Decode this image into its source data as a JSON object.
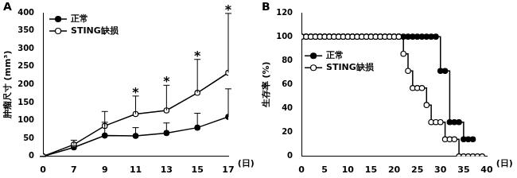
{
  "chart_data": [
    {
      "type": "line",
      "title": "A",
      "categories": [
        "0",
        "7",
        "9",
        "11",
        "13",
        "15",
        "17"
      ],
      "x_label": "(日)",
      "y_label": "肿瘤尺寸 (mm³)",
      "series": [
        {
          "name": "正常",
          "color": "#000000",
          "marker": "filled_circle",
          "values": [
            0,
            25,
            58,
            57,
            65,
            80,
            110
          ],
          "errors": [
            0,
            5,
            37,
            23,
            28,
            40,
            78
          ]
        },
        {
          "name": "STING缺损",
          "color": "#000000",
          "marker": "open_circle",
          "values": [
            0,
            33,
            85,
            118,
            128,
            177,
            233
          ],
          "errors": [
            0,
            12,
            40,
            50,
            70,
            93,
            165
          ]
        }
      ],
      "ylim": [
        0,
        400
      ],
      "yticks": [
        0,
        50,
        100,
        150,
        200,
        250,
        300,
        350,
        400
      ],
      "grid": false,
      "legend": "upper left",
      "annotations": [
        {
          "x": "11",
          "text": "*"
        },
        {
          "x": "13",
          "text": "*"
        },
        {
          "x": "15",
          "text": "*"
        },
        {
          "x": "17",
          "text": "*"
        }
      ]
    },
    {
      "type": "line",
      "title": "B",
      "x_label": "(日)",
      "y_label": "生存率 (%)",
      "series": [
        {
          "name": "正常",
          "color": "#000000",
          "marker": "filled_circle",
          "line_style": "step",
          "x": [
            0,
            1,
            2,
            3,
            4,
            5,
            6,
            7,
            8,
            9,
            10,
            11,
            12,
            13,
            14,
            15,
            16,
            17,
            18,
            19,
            20,
            21,
            22,
            23,
            24,
            25,
            26,
            27,
            28,
            29,
            30,
            31,
            32,
            33,
            34,
            35,
            36,
            37
          ],
          "values": [
            100,
            100,
            100,
            100,
            100,
            100,
            100,
            100,
            100,
            100,
            100,
            100,
            100,
            100,
            100,
            100,
            100,
            100,
            100,
            100,
            100,
            100,
            100,
            100,
            100,
            100,
            100,
            100,
            100,
            100,
            71.4,
            71.4,
            28.6,
            28.6,
            28.6,
            14.3,
            14.3,
            14.3
          ]
        },
        {
          "name": "STING缺损",
          "color": "#000000",
          "marker": "open_circle",
          "line_style": "step",
          "x": [
            0,
            1,
            2,
            3,
            4,
            5,
            6,
            7,
            8,
            9,
            10,
            11,
            12,
            13,
            14,
            15,
            16,
            17,
            18,
            19,
            20,
            21,
            22,
            23,
            24,
            25,
            26,
            27,
            28,
            29,
            30,
            31,
            32,
            33,
            34,
            35,
            36,
            37,
            38,
            39
          ],
          "values": [
            100,
            100,
            100,
            100,
            100,
            100,
            100,
            100,
            100,
            100,
            100,
            100,
            100,
            100,
            100,
            100,
            100,
            100,
            100,
            100,
            100,
            100,
            85.7,
            71.4,
            57.1,
            57.1,
            57.1,
            42.9,
            28.6,
            28.6,
            28.6,
            14.3,
            14.3,
            14.3,
            0,
            0,
            0,
            0,
            0,
            0
          ]
        }
      ],
      "xlim": [
        0,
        40
      ],
      "xticks": [
        0,
        5,
        10,
        15,
        20,
        25,
        30,
        35,
        40
      ],
      "ylim": [
        0,
        120
      ],
      "yticks": [
        0,
        20,
        40,
        60,
        80,
        100,
        120
      ],
      "grid": false,
      "legend": "upper left"
    }
  ]
}
